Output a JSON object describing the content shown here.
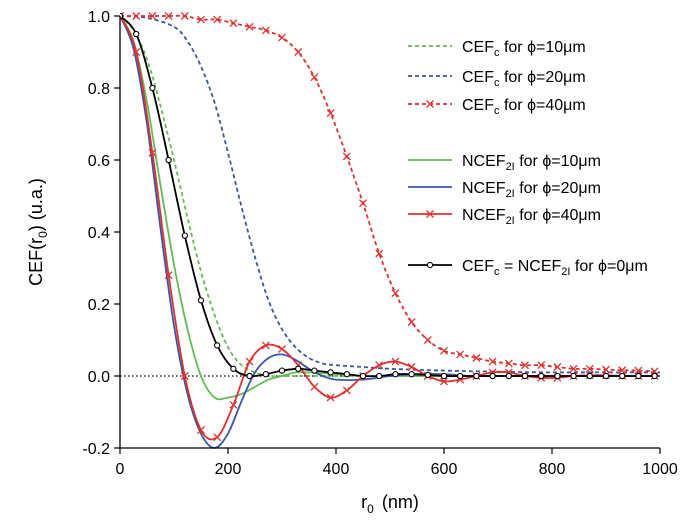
{
  "chart_data": {
    "type": "line",
    "title": "",
    "xlabel": {
      "main": "r",
      "sub": "0",
      "unit": "(nm)"
    },
    "ylabel": {
      "pre": "CEF(r",
      "sub": "0",
      "post": ") (u.a.)"
    },
    "xlim": [
      0,
      1000
    ],
    "ylim": [
      -0.2,
      1.0
    ],
    "x_ticks": [
      0,
      200,
      400,
      600,
      800,
      1000
    ],
    "x_tick_labels": [
      "0",
      "200",
      "400",
      "600",
      "800",
      "1000"
    ],
    "y_ticks": [
      -0.2,
      0.0,
      0.2,
      0.4,
      0.6,
      0.8,
      1.0
    ],
    "y_tick_labels": [
      "-0.2",
      "0.0",
      "0.2",
      "0.4",
      "0.6",
      "0.8",
      "1.0"
    ],
    "zero_line": true,
    "grid": false,
    "legend_position": "right",
    "series": [
      {
        "id": "cefc10",
        "label": {
          "pre": "CEF",
          "sub": "c",
          "post": " for ϕ=10μm"
        },
        "color": "#66bb55",
        "dash": "dashed",
        "marker": "none",
        "x": [
          0,
          25,
          50,
          75,
          100,
          125,
          150,
          175,
          200,
          225,
          250,
          275,
          300,
          350,
          400,
          450,
          500,
          600,
          700,
          800,
          900,
          1000
        ],
        "y": [
          1.0,
          0.96,
          0.88,
          0.75,
          0.6,
          0.44,
          0.29,
          0.17,
          0.08,
          0.03,
          0.01,
          0.0,
          0.0,
          0.0,
          0.0,
          0.0,
          0.0,
          0.0,
          0.0,
          0.0,
          0.0,
          0.0
        ]
      },
      {
        "id": "cefc20",
        "label": {
          "pre": "CEF",
          "sub": "c",
          "post": " for ϕ=20μm"
        },
        "color": "#3a56a6",
        "dash": "dashed",
        "marker": "none",
        "x": [
          0,
          50,
          100,
          125,
          150,
          175,
          200,
          225,
          250,
          275,
          300,
          325,
          350,
          375,
          400,
          450,
          500,
          600,
          700,
          800,
          900,
          1000
        ],
        "y": [
          1.0,
          0.995,
          0.97,
          0.93,
          0.86,
          0.76,
          0.62,
          0.47,
          0.33,
          0.21,
          0.13,
          0.08,
          0.05,
          0.035,
          0.03,
          0.025,
          0.02,
          0.015,
          0.012,
          0.01,
          0.01,
          0.01
        ]
      },
      {
        "id": "cefc40",
        "label": {
          "pre": "CEF",
          "sub": "c",
          "post": " for ϕ=40μm"
        },
        "color": "#e03030",
        "dash": "dashed",
        "marker": "x",
        "x": [
          0,
          30,
          60,
          90,
          120,
          150,
          180,
          210,
          240,
          270,
          300,
          330,
          360,
          390,
          420,
          450,
          480,
          510,
          540,
          570,
          600,
          630,
          660,
          690,
          720,
          750,
          780,
          810,
          840,
          870,
          900,
          930,
          960,
          990
        ],
        "y": [
          1.0,
          1.0,
          1.0,
          1.0,
          1.0,
          0.99,
          0.99,
          0.98,
          0.97,
          0.96,
          0.94,
          0.9,
          0.83,
          0.73,
          0.61,
          0.48,
          0.34,
          0.23,
          0.15,
          0.1,
          0.07,
          0.06,
          0.05,
          0.04,
          0.035,
          0.03,
          0.03,
          0.025,
          0.02,
          0.02,
          0.018,
          0.016,
          0.015,
          0.013
        ]
      },
      {
        "id": "ncef10",
        "label": {
          "pre": "NCEF",
          "sub": "2I",
          "post": " for ϕ=10μm"
        },
        "color": "#66bb55",
        "dash": "solid",
        "marker": "none",
        "x": [
          0,
          25,
          50,
          75,
          100,
          125,
          150,
          175,
          200,
          225,
          250,
          275,
          300,
          325,
          350,
          400,
          450,
          500,
          600,
          700,
          800,
          900,
          1000
        ],
        "y": [
          1.0,
          0.93,
          0.76,
          0.53,
          0.31,
          0.13,
          0.0,
          -0.06,
          -0.06,
          -0.05,
          -0.03,
          -0.01,
          0.0,
          0.01,
          0.01,
          0.005,
          0.0,
          0.0,
          0.0,
          0.0,
          0.0,
          0.0,
          0.0
        ]
      },
      {
        "id": "ncef20",
        "label": {
          "pre": "NCEF",
          "sub": "2I",
          "post": " for ϕ=20μm"
        },
        "color": "#3a56a6",
        "dash": "solid",
        "marker": "none",
        "x": [
          0,
          25,
          50,
          75,
          100,
          125,
          150,
          175,
          200,
          225,
          250,
          275,
          300,
          325,
          350,
          375,
          400,
          450,
          500,
          550,
          600,
          650,
          700,
          800,
          900,
          1000
        ],
        "y": [
          1.0,
          0.91,
          0.7,
          0.41,
          0.14,
          -0.05,
          -0.16,
          -0.2,
          -0.16,
          -0.07,
          0.01,
          0.05,
          0.06,
          0.045,
          0.02,
          0.0,
          -0.01,
          -0.01,
          0.0,
          0.005,
          0.005,
          0.0,
          0.0,
          0.0,
          0.0,
          0.0
        ]
      },
      {
        "id": "ncef40",
        "label": {
          "pre": "NCEF",
          "sub": "2I",
          "post": " for ϕ=40μm"
        },
        "color": "#e03030",
        "dash": "solid",
        "marker": "x",
        "x": [
          0,
          30,
          60,
          90,
          120,
          150,
          180,
          210,
          240,
          270,
          300,
          330,
          360,
          390,
          420,
          450,
          480,
          510,
          540,
          570,
          600,
          630,
          660,
          690,
          720,
          750,
          780,
          810,
          840,
          870,
          900,
          930,
          960,
          990
        ],
        "y": [
          1.0,
          0.9,
          0.62,
          0.28,
          0.0,
          -0.15,
          -0.17,
          -0.08,
          0.04,
          0.085,
          0.075,
          0.03,
          -0.03,
          -0.06,
          -0.04,
          0.0,
          0.03,
          0.04,
          0.025,
          0.0,
          -0.015,
          -0.01,
          0.0,
          0.01,
          0.01,
          0.0,
          -0.005,
          -0.005,
          0.0,
          0.002,
          0.002,
          0.0,
          0.0,
          0.0
        ]
      },
      {
        "id": "cef0",
        "label": {
          "pre": "CEF",
          "sub": "c",
          "mid": " = NCEF",
          "sub2": "2I",
          "post": " for ϕ=0μm"
        },
        "color": "#000000",
        "dash": "solid",
        "marker": "circle",
        "x": [
          0,
          30,
          60,
          90,
          120,
          150,
          180,
          210,
          240,
          270,
          300,
          330,
          360,
          390,
          420,
          450,
          480,
          510,
          540,
          570,
          600,
          630,
          660,
          690,
          720,
          750,
          780,
          810,
          840,
          870,
          900,
          930,
          960,
          990
        ],
        "y": [
          1.0,
          0.95,
          0.8,
          0.6,
          0.39,
          0.21,
          0.085,
          0.02,
          0.0,
          0.005,
          0.015,
          0.02,
          0.015,
          0.01,
          0.005,
          0.0,
          0.0,
          0.005,
          0.005,
          0.003,
          0.0,
          0.0,
          0.0,
          0.0,
          0.0,
          0.0,
          0.0,
          0.0,
          0.0,
          0.0,
          0.0,
          0.0,
          0.0,
          0.0
        ]
      }
    ]
  }
}
